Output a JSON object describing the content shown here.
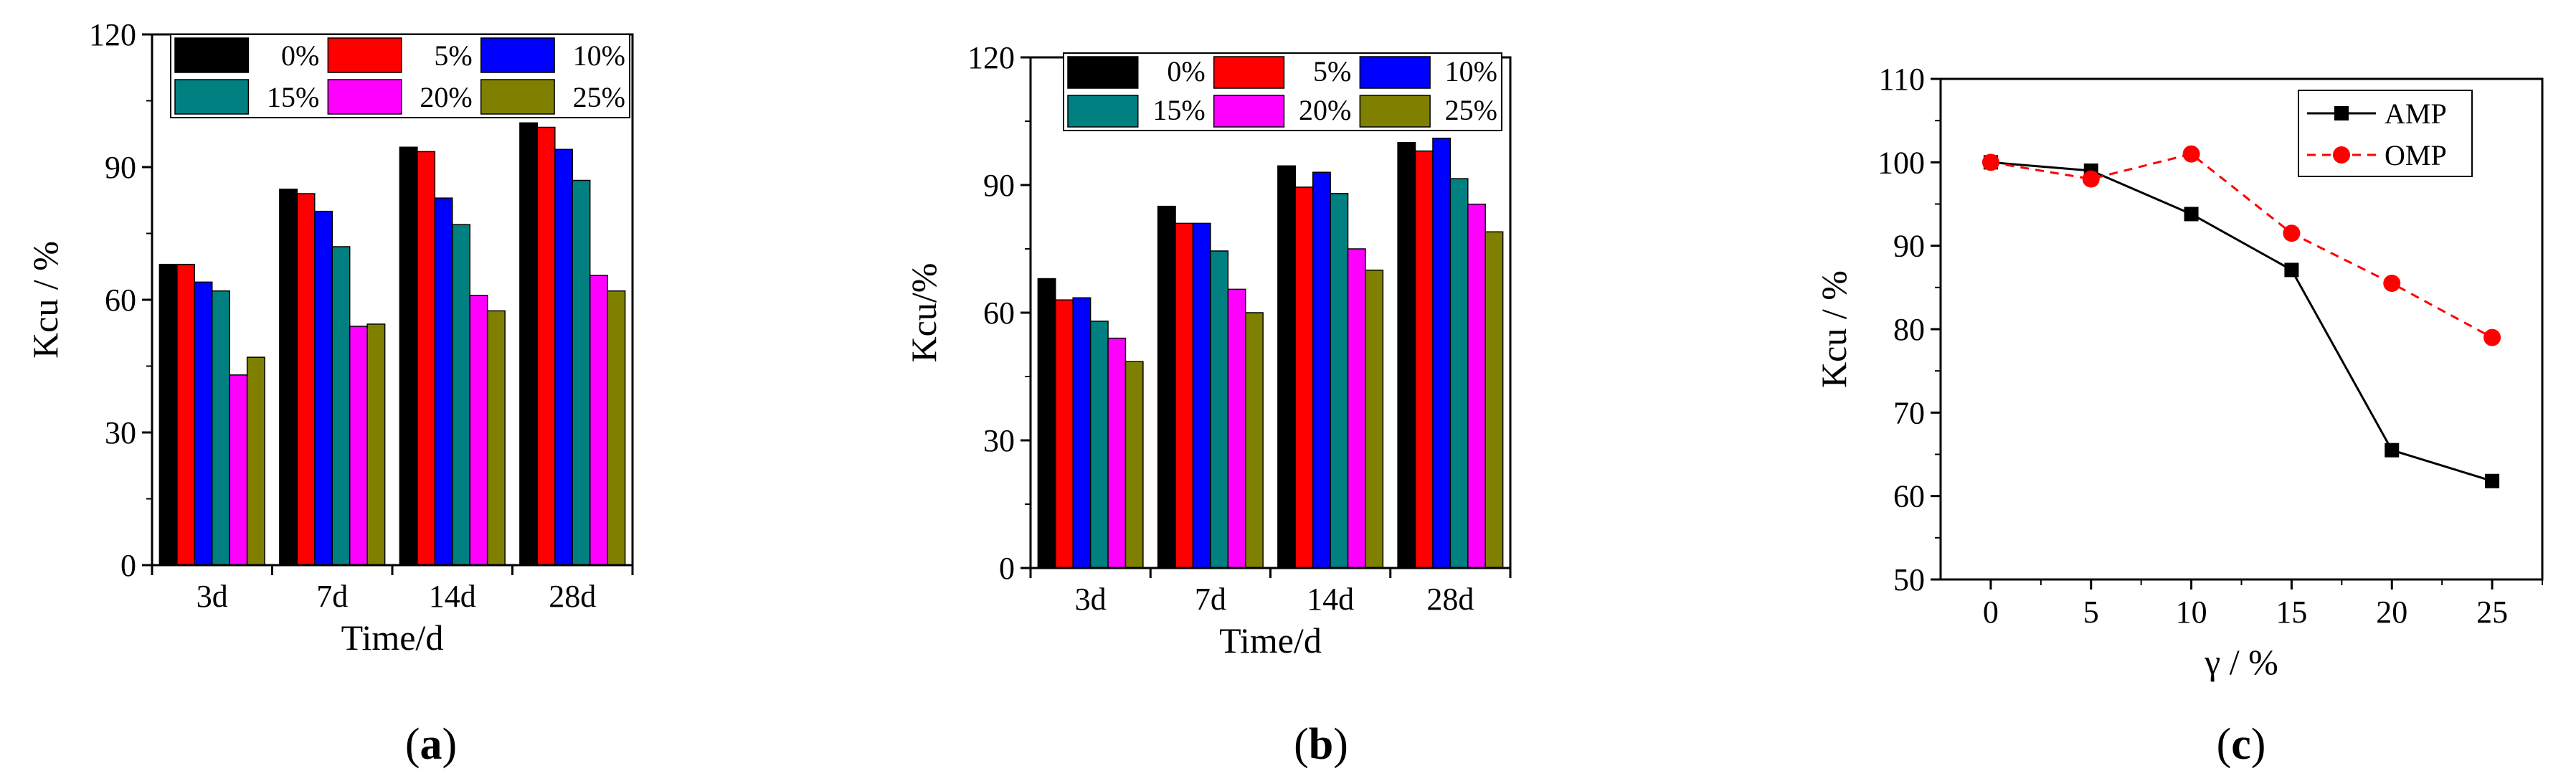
{
  "colors": {
    "0%": "#000000",
    "5%": "#ff0000",
    "10%": "#0000ff",
    "15%": "#008080",
    "20%": "#ff00ff",
    "25%": "#808000",
    "AMP": "#000000",
    "OMP": "#ff0000"
  },
  "chart_data": [
    {
      "type": "bar",
      "panel_label": "(a)",
      "xlabel": "Time/d",
      "ylabel": "Kcu / %",
      "categories": [
        "3d",
        "7d",
        "14d",
        "28d"
      ],
      "yticks": [
        "0",
        "30",
        "60",
        "90",
        "120"
      ],
      "ylim": [
        0,
        120
      ],
      "series": [
        {
          "name": "0%",
          "values": [
            68,
            85,
            94.5,
            100
          ]
        },
        {
          "name": "5%",
          "values": [
            68,
            84,
            93.5,
            99
          ]
        },
        {
          "name": "10%",
          "values": [
            64,
            80,
            83,
            94
          ]
        },
        {
          "name": "15%",
          "values": [
            62,
            72,
            77,
            87
          ]
        },
        {
          "name": "20%",
          "values": [
            43,
            54,
            61,
            65.5
          ]
        },
        {
          "name": "25%",
          "values": [
            47,
            54.5,
            57.5,
            62
          ]
        }
      ]
    },
    {
      "type": "bar",
      "panel_label": "(b)",
      "xlabel": "Time/d",
      "ylabel": "Kcu/%",
      "categories": [
        "3d",
        "7d",
        "14d",
        "28d"
      ],
      "yticks": [
        "0",
        "30",
        "60",
        "90",
        "120"
      ],
      "ylim": [
        0,
        120
      ],
      "series": [
        {
          "name": "0%",
          "values": [
            68,
            85,
            94.5,
            100
          ]
        },
        {
          "name": "5%",
          "values": [
            63,
            81,
            89.5,
            98
          ]
        },
        {
          "name": "10%",
          "values": [
            63.5,
            81,
            93,
            101
          ]
        },
        {
          "name": "15%",
          "values": [
            58,
            74.5,
            88,
            91.5
          ]
        },
        {
          "name": "20%",
          "values": [
            54,
            65.5,
            75,
            85.5
          ]
        },
        {
          "name": "25%",
          "values": [
            48.5,
            60,
            70,
            79
          ]
        }
      ]
    },
    {
      "type": "line",
      "panel_label": "(c)",
      "xlabel": "γ / %",
      "ylabel": "Kcu / %",
      "x": [
        0,
        5,
        10,
        15,
        20,
        25
      ],
      "xticks": [
        "0",
        "5",
        "10",
        "15",
        "20",
        "25"
      ],
      "yticks": [
        "50",
        "60",
        "70",
        "80",
        "90",
        "100",
        "110"
      ],
      "xlim": [
        -2.5,
        27.5
      ],
      "ylim": [
        50,
        110
      ],
      "series": [
        {
          "name": "AMP",
          "marker": "square",
          "line": "solid",
          "values": [
            100,
            99,
            93.8,
            87.1,
            65.5,
            61.8
          ]
        },
        {
          "name": "OMP",
          "marker": "circle",
          "line": "dashed",
          "values": [
            100,
            98,
            101,
            91.5,
            85.5,
            79
          ]
        }
      ]
    }
  ]
}
